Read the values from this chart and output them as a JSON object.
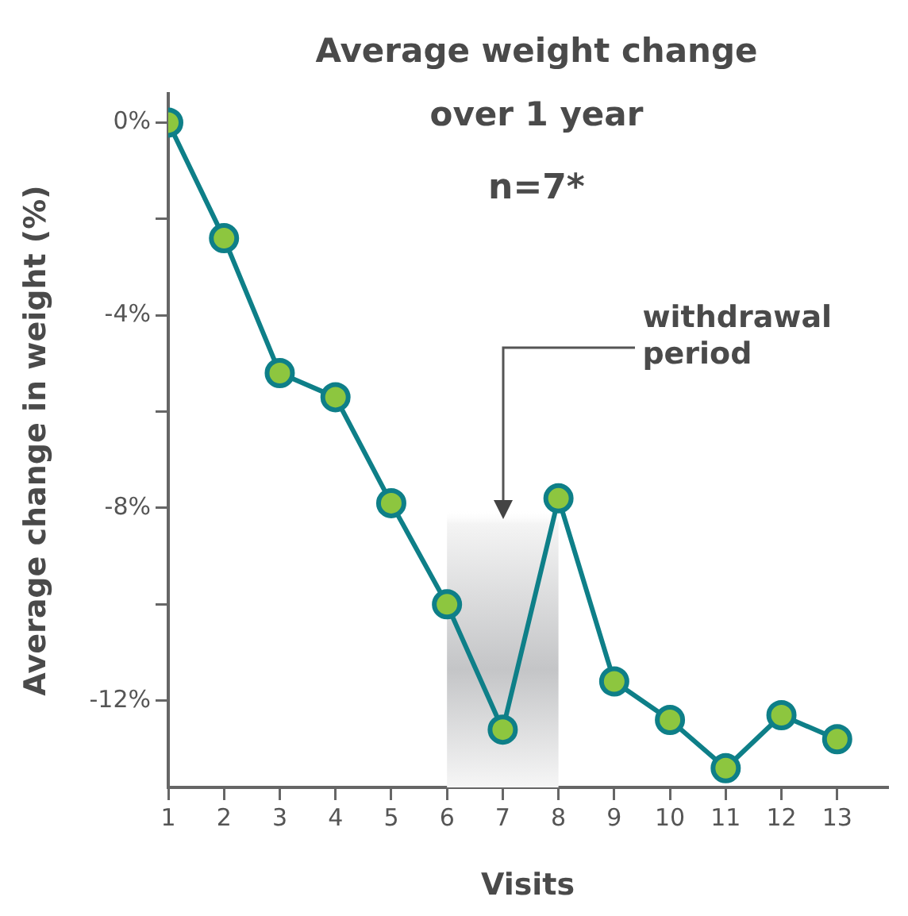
{
  "chart_data": {
    "type": "line",
    "title": "Average weight change over 1 year",
    "subtitle": "n=7*",
    "xlabel": "Visits",
    "ylabel": "Average change in weight (%)",
    "x": [
      1,
      2,
      3,
      4,
      5,
      6,
      7,
      8,
      9,
      10,
      11,
      12,
      13
    ],
    "series": [
      {
        "color": "#0e7f88",
        "values": [
          0,
          -2.4,
          -5.2,
          -5.7,
          -7.9,
          -10.0,
          -12.6,
          -7.8,
          -11.6,
          -12.4,
          -13.4,
          -12.3,
          -12.8
        ]
      }
    ],
    "xlim": [
      1,
      13.9
    ],
    "xticks": [
      1,
      2,
      3,
      4,
      5,
      6,
      7,
      8,
      9,
      10,
      11,
      12,
      13
    ],
    "ylim": [
      -13.8,
      0.6
    ],
    "yticks": [
      {
        "value": 0,
        "label": "0%"
      },
      {
        "value": -2,
        "label": null
      },
      {
        "value": -4,
        "label": "-4%"
      },
      {
        "value": -6,
        "label": null
      },
      {
        "value": -8,
        "label": "-8%"
      },
      {
        "value": -10,
        "label": null
      },
      {
        "value": -12,
        "label": "-12%"
      }
    ],
    "bands": [
      {
        "axis": "x",
        "from": 6,
        "to": 8,
        "color": "#c4c5c7",
        "label": "withdrawal period"
      }
    ],
    "marker": "circle",
    "line_style": "solid",
    "grid": false,
    "legend": false
  }
}
